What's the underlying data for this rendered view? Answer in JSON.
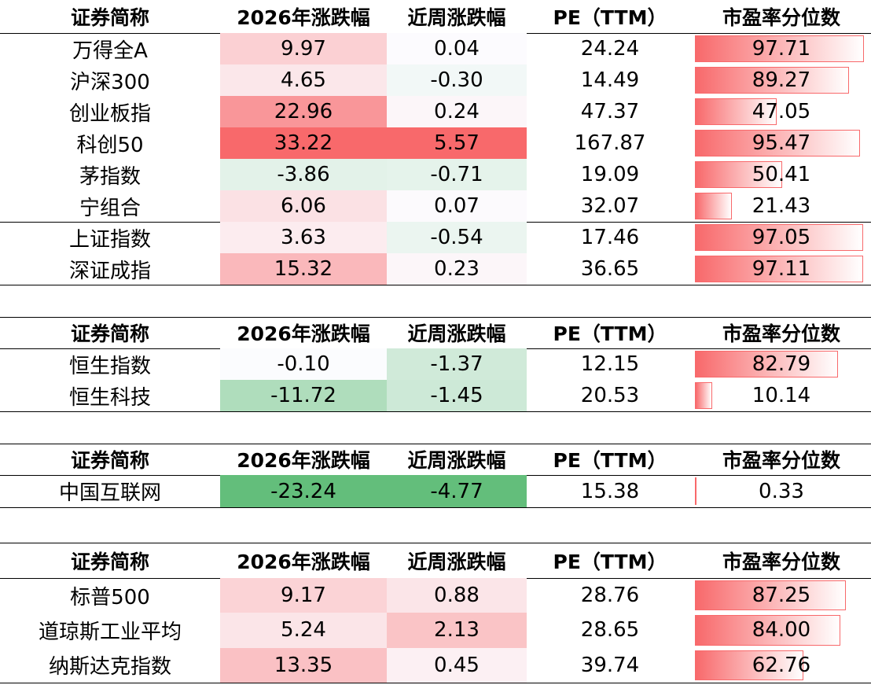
{
  "columns": [
    "证券简称",
    "2026年涨跌幅",
    "近周涨跌幅",
    "PE（TTM）",
    "市盈率分位数"
  ],
  "tables": [
    {
      "rows": [
        [
          "万得全A",
          "9.97",
          "0.04",
          "24.24",
          "97.71"
        ],
        [
          "沪深300",
          "4.65",
          "-0.30",
          "14.49",
          "89.27"
        ],
        [
          "创业板指",
          "22.96",
          "0.24",
          "47.37",
          "47.05"
        ],
        [
          "科创50",
          "33.22",
          "5.57",
          "167.87",
          "95.47"
        ],
        [
          "茅指数",
          "-3.86",
          "-0.71",
          "19.09",
          "50.41"
        ],
        [
          "宁组合",
          "6.06",
          "0.07",
          "32.07",
          "21.43"
        ],
        [
          "上证指数",
          "3.63",
          "-0.54",
          "17.46",
          "97.05"
        ],
        [
          "深证成指",
          "15.32",
          "0.23",
          "36.65",
          "97.11"
        ]
      ]
    },
    {
      "rows": [
        [
          "恒生指数",
          "-0.10",
          "-1.37",
          "12.15",
          "82.79"
        ],
        [
          "恒生科技",
          "-11.72",
          "-1.45",
          "20.53",
          "10.14"
        ]
      ]
    },
    {
      "rows": [
        [
          "中国互联网",
          "-23.24",
          "-4.77",
          "15.38",
          "0.33"
        ]
      ]
    },
    {
      "rows": [
        [
          "标普500",
          "9.17",
          "0.88",
          "28.76",
          "87.25"
        ],
        [
          "道琼斯工业平均",
          "5.24",
          "2.13",
          "28.65",
          "84.00"
        ],
        [
          "纳斯达克指数",
          "13.35",
          "0.45",
          "39.74",
          "62.76"
        ]
      ]
    }
  ]
}
